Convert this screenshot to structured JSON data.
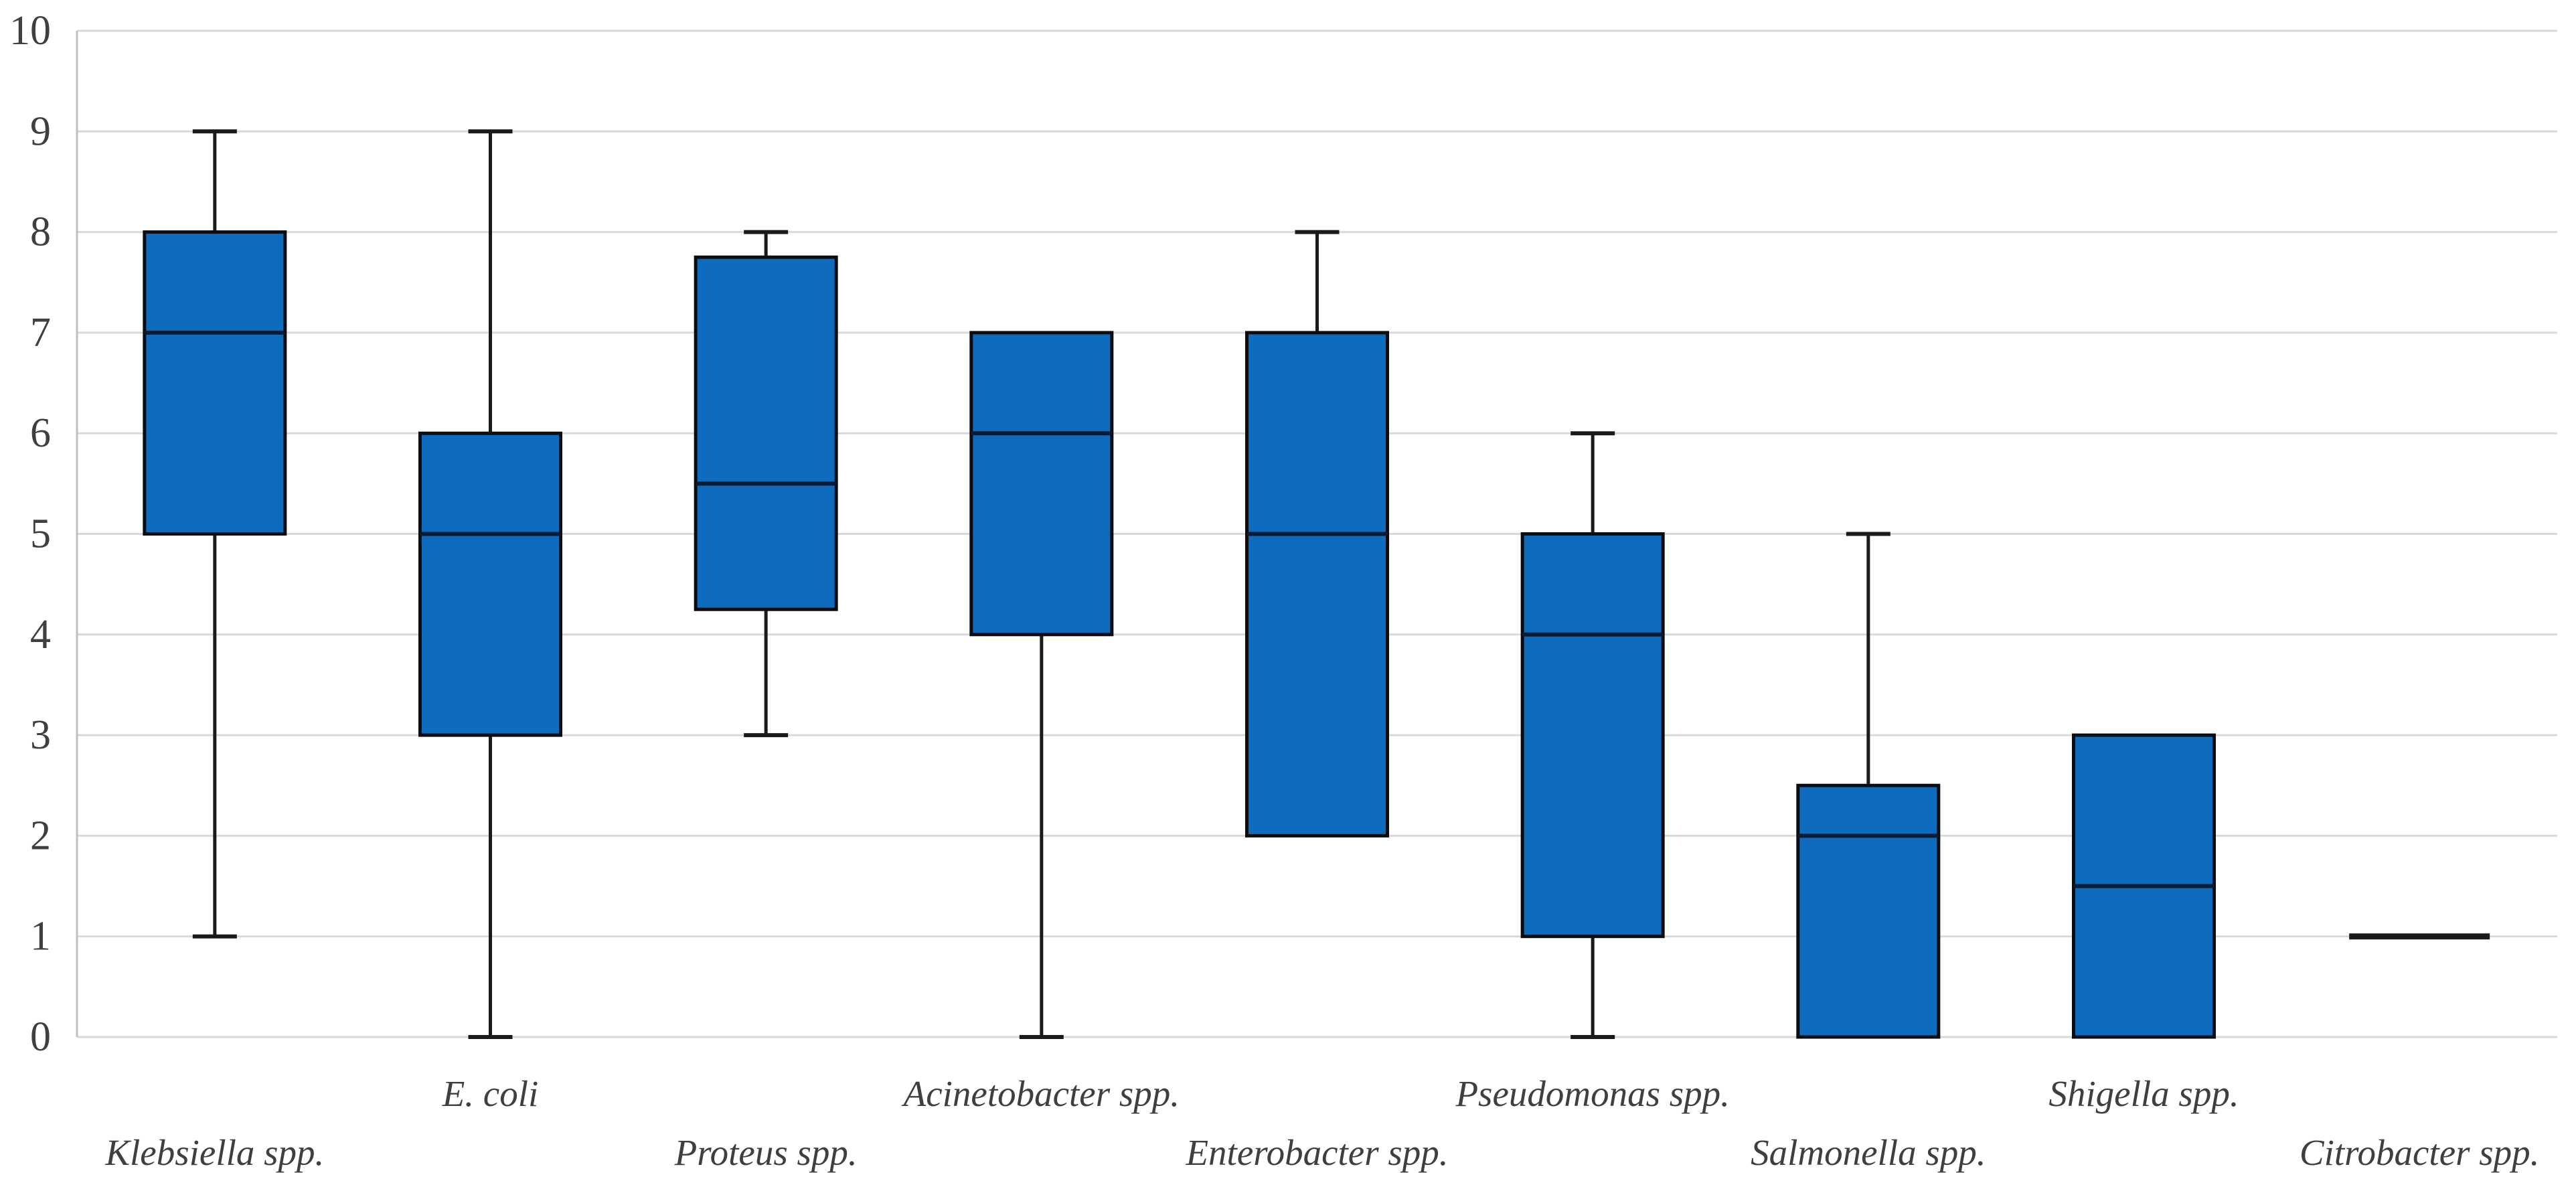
{
  "chart_data": {
    "type": "box",
    "title": "",
    "xlabel": "",
    "ylabel": "",
    "categories": [
      "Klebsiella spp.",
      "E. coli",
      "Proteus spp.",
      "Acinetobacter spp.",
      "Enterobacter spp.",
      "Pseudomonas spp.",
      "Salmonella spp.",
      "Shigella spp.",
      "Citrobacter spp."
    ],
    "series": [
      {
        "name": "Klebsiella spp.",
        "min": 1,
        "q1": 5,
        "median": 7,
        "q3": 8,
        "max": 9
      },
      {
        "name": "E. coli",
        "min": 0,
        "q1": 3,
        "median": 5,
        "q3": 6,
        "max": 9
      },
      {
        "name": "Proteus spp.",
        "min": 3,
        "q1": 4.25,
        "median": 5.5,
        "q3": 7.75,
        "max": 8
      },
      {
        "name": "Acinetobacter spp.",
        "min": 0,
        "q1": 4,
        "median": 6,
        "q3": 7,
        "max": 7
      },
      {
        "name": "Enterobacter spp.",
        "min": 2,
        "q1": 2,
        "median": 5,
        "q3": 7,
        "max": 8
      },
      {
        "name": "Pseudomonas spp.",
        "min": 0,
        "q1": 1,
        "median": 4,
        "q3": 5,
        "max": 6
      },
      {
        "name": "Salmonella spp.",
        "min": 0,
        "q1": 0,
        "median": 2,
        "q3": 2.5,
        "max": 5
      },
      {
        "name": "Shigella spp.",
        "min": 0,
        "q1": 0,
        "median": 1.5,
        "q3": 3,
        "max": 3
      },
      {
        "name": "Citrobacter spp.",
        "min": 1,
        "q1": 1,
        "median": 1,
        "q3": 1,
        "max": 1
      }
    ],
    "y_axis": {
      "min": 0,
      "max": 10,
      "step": 1,
      "tick_labels": [
        "0",
        "1",
        "2",
        "3",
        "4",
        "5",
        "6",
        "7",
        "8",
        "9",
        "10"
      ]
    },
    "grid": true,
    "legend": false,
    "label_rows": {
      "odd_categories": "upper",
      "even_categories": "lower"
    },
    "colors": {
      "background": "#ffffff",
      "box_fill": "#0d6cbd",
      "box_border": "#0b0d10",
      "median_line": "#0c1a33",
      "whisker": "#1a1a1a",
      "gridline": "#d9d9d9",
      "axis_line": "#bfbfbf",
      "tick_text": "#3f3f3f",
      "label_text": "#3f3f3f"
    }
  }
}
